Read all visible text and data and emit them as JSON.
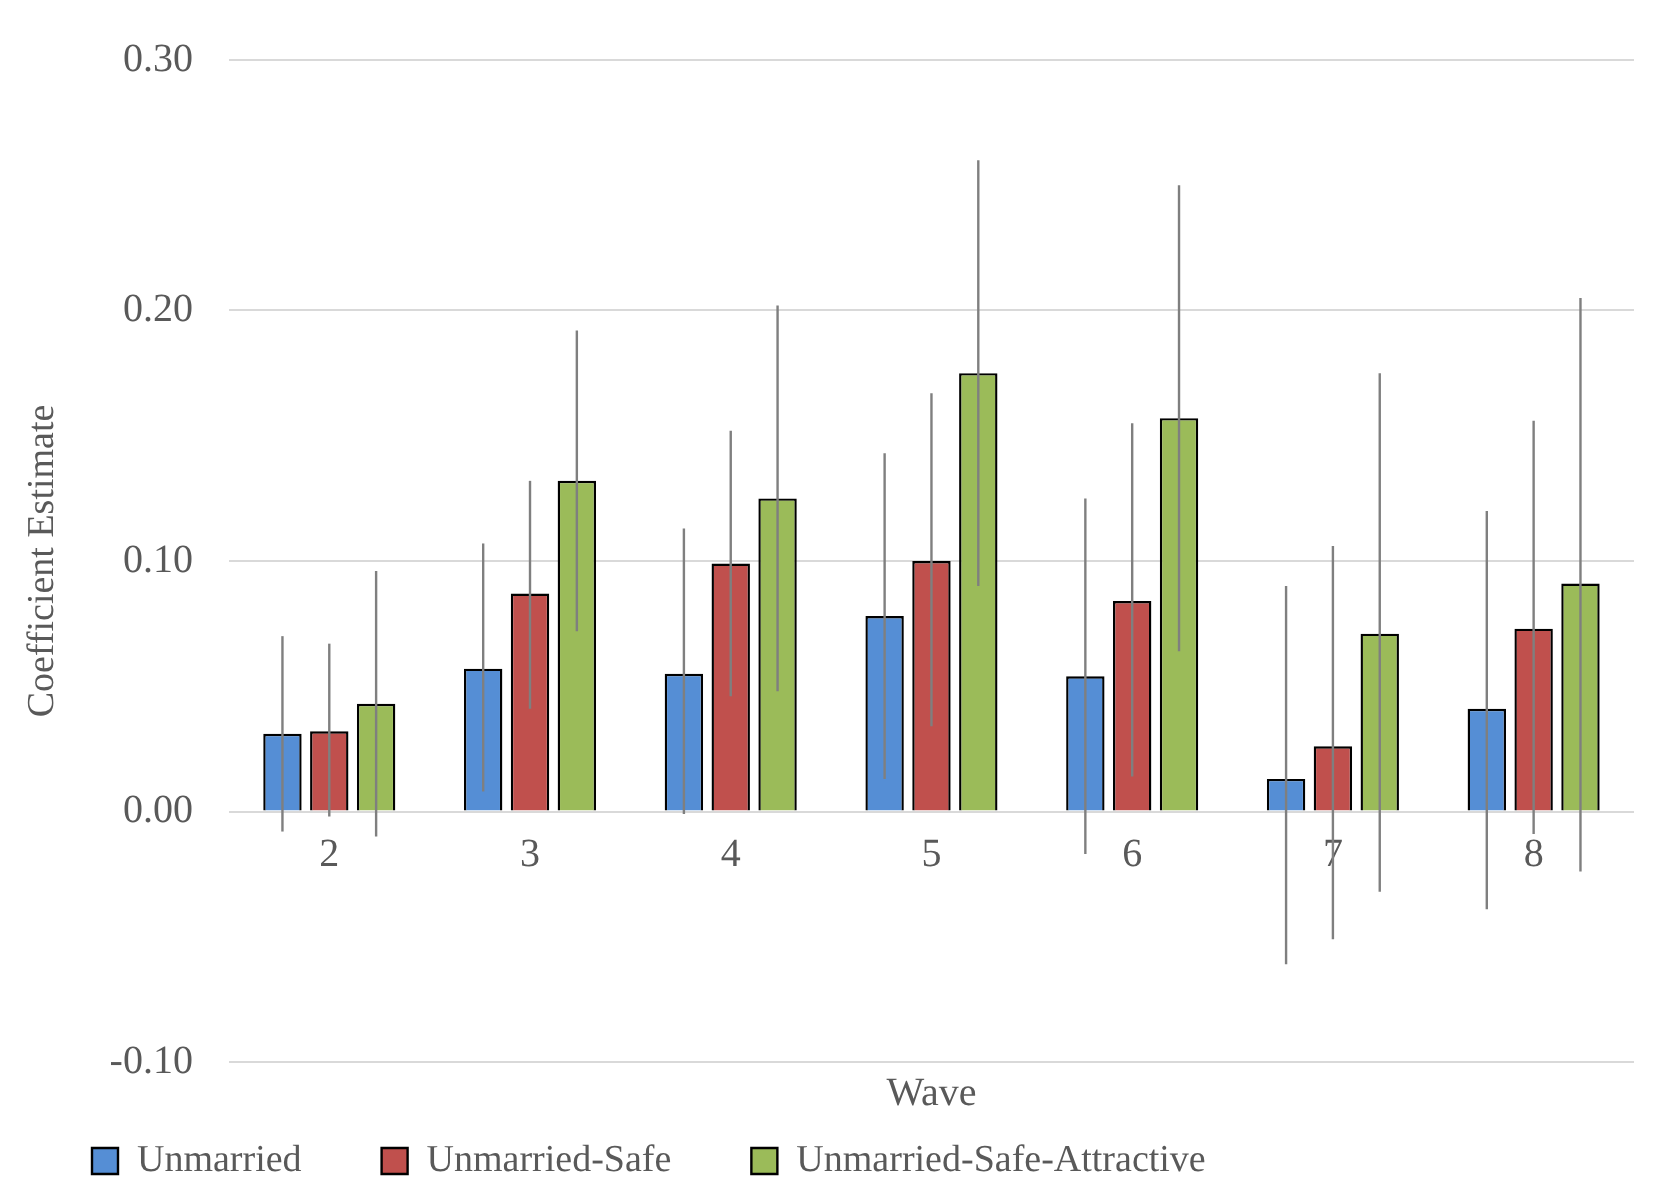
{
  "chart_data": {
    "type": "bar",
    "xlabel": "Wave",
    "ylabel": "Coefficient Estimate",
    "categories": [
      "2",
      "3",
      "4",
      "5",
      "6",
      "7",
      "8"
    ],
    "series": [
      {
        "name": "Unmarried",
        "color": "#558ed5",
        "values": [
          0.031,
          0.057,
          0.055,
          0.078,
          0.054,
          0.013,
          0.041
        ],
        "errors": [
          [
            -0.008,
            0.07
          ],
          [
            0.008,
            0.107
          ],
          [
            -0.001,
            0.113
          ],
          [
            0.013,
            0.143
          ],
          [
            -0.017,
            0.125
          ],
          [
            -0.061,
            0.09
          ],
          [
            -0.039,
            0.12
          ]
        ]
      },
      {
        "name": "Unmarried-Safe",
        "color": "#c0504d",
        "values": [
          0.032,
          0.087,
          0.099,
          0.1,
          0.084,
          0.026,
          0.073
        ],
        "errors": [
          [
            -0.002,
            0.067
          ],
          [
            0.041,
            0.132
          ],
          [
            0.046,
            0.152
          ],
          [
            0.034,
            0.167
          ],
          [
            0.014,
            0.155
          ],
          [
            -0.051,
            0.106
          ],
          [
            -0.009,
            0.156
          ]
        ]
      },
      {
        "name": "Unmarried-Safe-Attractive",
        "color": "#9bbb59",
        "values": [
          0.043,
          0.132,
          0.125,
          0.175,
          0.157,
          0.071,
          0.091
        ],
        "errors": [
          [
            -0.01,
            0.096
          ],
          [
            0.072,
            0.192
          ],
          [
            0.048,
            0.202
          ],
          [
            0.09,
            0.26
          ],
          [
            0.064,
            0.25
          ],
          [
            -0.032,
            0.175
          ],
          [
            -0.024,
            0.205
          ]
        ]
      }
    ],
    "ylim": [
      -0.1,
      0.3
    ],
    "yticks": [
      {
        "value": -0.1,
        "label": "-0.10"
      },
      {
        "value": 0,
        "label": "0.00"
      },
      {
        "value": 0.1,
        "label": "0.10"
      },
      {
        "value": 0.2,
        "label": "0.20"
      },
      {
        "value": 0.3,
        "label": "0.30"
      }
    ],
    "grid": "y",
    "legend": "bottom"
  }
}
